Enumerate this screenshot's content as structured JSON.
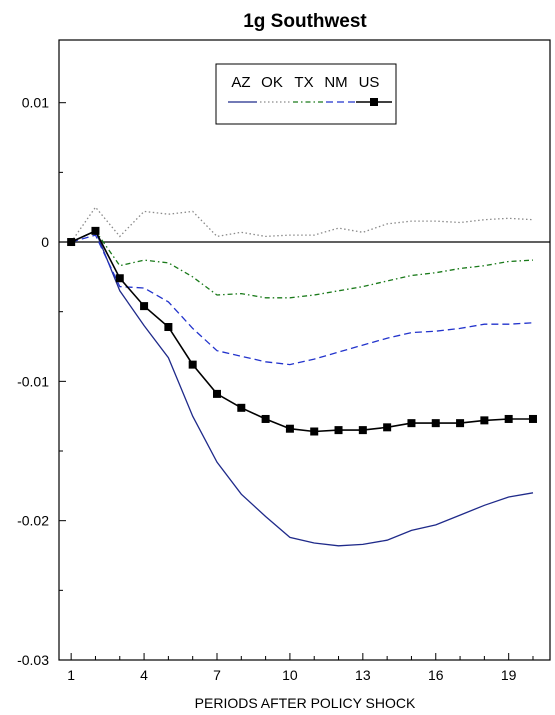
{
  "chart_data": {
    "type": "line",
    "title": "1g Southwest",
    "xlabel": "PERIODS AFTER POLICY SHOCK",
    "ylabel": "",
    "xlim": [
      0.5,
      20.7
    ],
    "ylim": [
      -0.03,
      0.0145
    ],
    "xticks": [
      1,
      4,
      7,
      10,
      13,
      16,
      19
    ],
    "yticks": [
      0.01,
      0,
      -0.01,
      -0.02,
      -0.03
    ],
    "ytick_labels": [
      "0.01",
      "0",
      "-0.01",
      "-0.02",
      "-0.03"
    ],
    "zero_line": true,
    "grid": false,
    "legend_position": "top-center",
    "x": [
      1,
      2,
      3,
      4,
      5,
      6,
      7,
      8,
      9,
      10,
      11,
      12,
      13,
      14,
      15,
      16,
      17,
      18,
      19,
      20
    ],
    "series": [
      {
        "name": "AZ",
        "color": "#1f2a8a",
        "style": "solid",
        "values": [
          0,
          0.0008,
          -0.0035,
          -0.006,
          -0.0083,
          -0.0125,
          -0.0158,
          -0.0181,
          -0.0197,
          -0.0212,
          -0.0216,
          -0.0218,
          -0.0217,
          -0.0214,
          -0.0207,
          -0.0203,
          -0.0196,
          -0.0189,
          -0.0183,
          -0.018
        ]
      },
      {
        "name": "OK",
        "color": "#8a8a8a",
        "style": "dotted",
        "values": [
          0,
          0.0025,
          0.0004,
          0.0022,
          0.002,
          0.0022,
          0.0004,
          0.0007,
          0.0004,
          0.0005,
          0.0005,
          0.001,
          0.0007,
          0.0013,
          0.0015,
          0.0015,
          0.0014,
          0.0016,
          0.0017,
          0.0016
        ]
      },
      {
        "name": "TX",
        "color": "#1a7a1a",
        "style": "dashdot",
        "values": [
          0,
          0.0008,
          -0.0017,
          -0.0013,
          -0.0015,
          -0.0025,
          -0.0038,
          -0.0037,
          -0.004,
          -0.004,
          -0.0038,
          -0.0035,
          -0.0032,
          -0.0028,
          -0.0024,
          -0.0022,
          -0.0019,
          -0.0017,
          -0.0014,
          -0.0013
        ]
      },
      {
        "name": "NM",
        "color": "#2233cc",
        "style": "dashed",
        "values": [
          0,
          0.0005,
          -0.0032,
          -0.0033,
          -0.0043,
          -0.0062,
          -0.0078,
          -0.0082,
          -0.0086,
          -0.0088,
          -0.0084,
          -0.0079,
          -0.0074,
          -0.0069,
          -0.0065,
          -0.0064,
          -0.0062,
          -0.0059,
          -0.0059,
          -0.0058
        ]
      },
      {
        "name": "US",
        "color": "#000000",
        "style": "solid-square",
        "values": [
          0,
          0.0008,
          -0.0026,
          -0.0046,
          -0.0061,
          -0.0088,
          -0.0109,
          -0.0119,
          -0.0127,
          -0.0134,
          -0.0136,
          -0.0135,
          -0.0135,
          -0.0133,
          -0.013,
          -0.013,
          -0.013,
          -0.0128,
          -0.0127,
          -0.0127
        ]
      }
    ]
  }
}
